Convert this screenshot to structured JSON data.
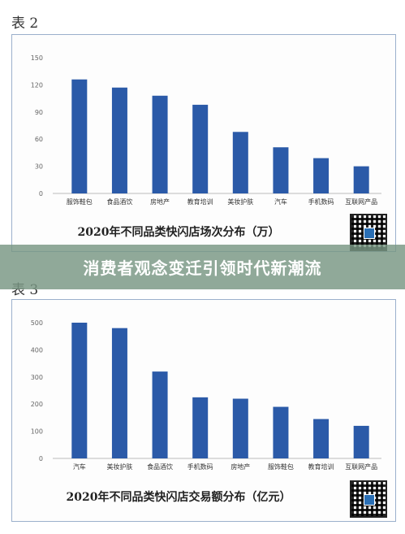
{
  "table1_label": "表 2",
  "table2_label": "表 3",
  "banner_text": "消费者观念变迁引领时代新潮流",
  "colors": {
    "bar": "#2b5aa8",
    "banner": "#789682"
  },
  "chart_data": [
    {
      "type": "bar",
      "title": "2020年不同品类快闪店场次分布（万）",
      "categories": [
        "服饰鞋包",
        "食品酒饮",
        "房地产",
        "教育培训",
        "美妆护肤",
        "汽车",
        "手机数码",
        "互联网产品"
      ],
      "values": [
        126,
        117,
        108,
        98,
        68,
        51,
        39,
        30
      ],
      "yticks": [
        0,
        30,
        60,
        90,
        120,
        150
      ],
      "ylim": [
        0,
        150
      ]
    },
    {
      "type": "bar",
      "title": "2020年不同品类快闪店交易额分布（亿元）",
      "categories": [
        "汽车",
        "美妆护肤",
        "食品酒饮",
        "手机数码",
        "房地产",
        "服饰鞋包",
        "教育培训",
        "互联网产品"
      ],
      "values": [
        500,
        480,
        320,
        225,
        220,
        190,
        145,
        120
      ],
      "yticks": [
        0,
        100,
        200,
        300,
        400,
        500
      ],
      "ylim": [
        0,
        500
      ]
    }
  ]
}
